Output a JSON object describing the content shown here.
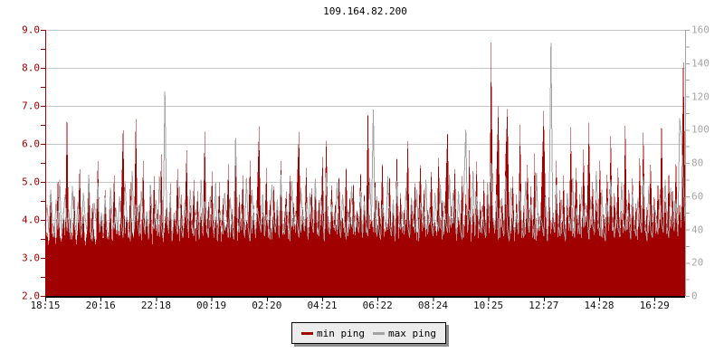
{
  "title": "109.164.82.200",
  "colors": {
    "min_ping": "#a00000",
    "max_ping": "#a3a3a3",
    "grid": "#c6c6c6",
    "left_axis": "#a00000",
    "right_axis": "#a5a5a5",
    "bottom_axis": "#000000",
    "left_labels": "#a00000",
    "right_labels": "#a5a5a5",
    "x_labels": "#111111",
    "legend_bg": "#ececec",
    "legend_border": "#000000",
    "legend_shadow": "#8c8c8c"
  },
  "legend": {
    "items": [
      {
        "label": "min ping",
        "color": "#a00000"
      },
      {
        "label": "max ping",
        "color": "#a3a3a3"
      }
    ]
  },
  "chart_data": {
    "type": "area",
    "title": "109.164.82.200",
    "grid": "horizontal gridlines at each whole unit of left axis, top border at 9.0",
    "legend_position": "bottom-center",
    "left_axis": {
      "series": "min ping",
      "min": 2.0,
      "max": 9.0,
      "tick_step": 0.5,
      "labels": [
        "9.0",
        "8.0",
        "7.0",
        "6.0",
        "5.0",
        "4.0",
        "3.0",
        "2.0"
      ]
    },
    "right_axis": {
      "series": "max ping",
      "min": 0,
      "max": 160,
      "tick_step": 10,
      "labels": [
        "160",
        "140",
        "120",
        "100",
        "80",
        "60",
        "40",
        "20",
        "0"
      ]
    },
    "x_axis": {
      "tick_labels": [
        "18:15",
        "20:16",
        "22:18",
        "00:19",
        "02:20",
        "04:21",
        "06:22",
        "08:24",
        "10:25",
        "12:27",
        "14:28",
        "16:29"
      ]
    },
    "series": [
      {
        "name": "min ping",
        "style": "area-fill-to-bottom",
        "axis": "left",
        "color": "#a00000",
        "values": [
          3.4,
          3.7,
          3.3,
          4.6,
          3.5,
          3.9,
          3.3,
          5.2,
          3.6,
          3.4,
          4.3,
          3.5,
          7.0,
          3.6,
          4.1,
          3.4,
          4.8,
          3.3,
          3.8,
          5.5,
          3.5,
          4.2,
          3.3,
          3.7,
          5.0,
          3.4,
          4.5,
          3.6,
          3.3,
          5.7,
          3.8,
          4.1,
          3.4,
          4.9,
          3.5,
          3.7,
          4.4,
          3.3,
          5.3,
          3.6,
          4.0,
          3.5,
          4.7,
          6.6,
          3.6,
          4.2,
          3.4,
          5.1,
          3.7,
          3.5,
          6.9,
          3.8,
          4.5,
          3.4,
          5.6,
          3.6,
          4.1,
          3.5,
          4.8,
          3.3,
          5.2,
          3.7,
          4.3,
          3.5,
          5.8,
          3.4,
          3.9,
          4.6,
          3.6,
          5.0,
          3.5,
          4.2,
          3.8,
          5.4,
          3.4,
          4.7,
          3.6,
          4.0,
          5.9,
          3.5,
          4.4,
          3.6,
          5.1,
          3.4,
          4.8,
          3.7,
          4.2,
          3.5,
          6.4,
          3.6,
          4.5,
          3.8,
          5.3,
          3.5,
          4.1,
          3.6,
          5.0,
          3.4,
          4.6,
          3.7,
          3.9,
          5.5,
          3.5,
          4.3,
          3.6,
          5.8,
          3.4,
          4.7,
          3.7,
          5.2,
          3.5,
          4.0,
          3.8,
          5.6,
          3.6,
          4.4,
          3.5,
          4.9,
          6.5,
          3.6,
          4.2,
          3.7,
          5.4,
          3.5,
          4.6,
          3.4,
          5.0,
          3.8,
          4.3,
          3.6,
          5.7,
          3.5,
          4.1,
          4.8,
          3.4,
          5.3,
          3.7,
          4.5,
          3.6,
          5.1,
          6.4,
          3.5,
          4.4,
          3.7,
          5.5,
          3.4,
          4.0,
          4.9,
          3.6,
          5.2,
          3.5,
          4.6,
          3.8,
          5.8,
          3.4,
          6.3,
          4.2,
          3.6,
          5.0,
          3.7,
          4.5,
          3.5,
          5.3,
          3.8,
          4.1,
          3.6,
          5.6,
          3.4,
          4.7,
          3.7,
          5.1,
          3.5,
          4.3,
          3.9,
          5.4,
          3.6,
          4.8,
          3.5,
          7.2,
          3.7,
          4.2,
          3.6,
          5.2,
          3.4,
          4.6,
          3.8,
          5.7,
          3.5,
          4.0,
          3.7,
          5.3,
          3.6,
          4.4,
          3.5,
          5.9,
          3.4,
          4.8,
          3.6,
          4.3,
          3.8,
          6.3,
          3.5,
          4.5,
          3.7,
          5.1,
          3.4,
          4.2,
          5.6,
          3.6,
          4.9,
          3.5,
          4.3,
          3.8,
          5.4,
          3.6,
          4.0,
          3.5,
          5.8,
          3.7,
          4.6,
          3.5,
          5.0,
          6.5,
          3.6,
          4.4,
          3.8,
          5.5,
          3.4,
          4.1,
          3.7,
          5.2,
          3.5,
          4.7,
          3.6,
          5.9,
          3.4,
          4.3,
          3.8,
          5.6,
          3.5,
          4.5,
          3.6,
          5.1,
          3.7,
          4.8,
          3.5,
          8.8,
          4.2,
          3.6,
          5.3,
          7.1,
          3.5,
          4.6,
          3.8,
          5.7,
          7.0,
          4.1,
          3.6,
          5.2,
          3.4,
          4.7,
          3.7,
          6.6,
          3.5,
          4.4,
          3.6,
          5.5,
          3.8,
          4.9,
          3.5,
          5.8,
          3.4,
          4.2,
          3.7,
          5.3,
          6.9,
          4.6,
          3.5,
          5.0,
          3.6,
          4.3,
          3.8,
          5.6,
          3.5,
          4.8,
          3.6,
          5.2,
          3.4,
          4.5,
          3.7,
          6.5,
          3.5,
          4.1,
          5.4,
          3.6,
          4.7,
          3.5,
          5.9,
          3.8,
          4.4,
          6.6,
          3.6,
          5.1,
          3.5,
          4.6,
          3.7,
          5.7,
          3.4,
          4.2,
          3.8,
          5.3,
          3.6,
          6.4,
          3.5,
          4.8,
          3.7,
          5.5,
          3.4,
          4.3,
          3.6,
          6.7,
          3.5,
          4.9,
          3.8,
          5.2,
          3.6,
          4.5,
          3.4,
          5.8,
          3.7,
          6.5,
          3.5,
          4.4,
          3.6,
          5.6,
          3.8,
          4.7,
          3.5,
          5.1,
          3.6,
          6.8,
          3.7,
          4.6,
          3.5,
          5.4,
          3.6,
          4.9,
          3.8,
          5.7,
          3.5,
          4.5,
          3.7,
          8.6,
          5.0
        ]
      },
      {
        "name": "max ping",
        "style": "line",
        "axis": "right",
        "color": "#a3a3a3",
        "values": [
          42,
          55,
          38,
          64,
          45,
          35,
          58,
          40,
          70,
          36,
          48,
          61,
          39,
          52,
          34,
          66,
          44,
          37,
          57,
          43,
          35,
          62,
          47,
          39,
          73,
          41,
          33,
          56,
          45,
          68,
          38,
          50,
          36,
          59,
          42,
          34,
          65,
          46,
          40,
          53,
          37,
          60,
          44,
          35,
          69,
          48,
          41,
          33,
          75,
          39,
          55,
          43,
          36,
          63,
          46,
          38,
          51,
          34,
          67,
          45,
          40,
          58,
          36,
          72,
          42,
          35,
          123,
          47,
          39,
          61,
          33,
          49,
          44,
          37,
          66,
          41,
          35,
          56,
          48,
          38,
          64,
          43,
          36,
          52,
          46,
          34,
          70,
          39,
          57,
          42,
          35,
          60,
          45,
          38,
          68,
          33,
          50,
          44,
          37,
          62,
          47,
          35,
          59,
          41,
          34,
          95,
          46,
          38,
          55,
          43,
          36,
          71,
          40,
          33,
          64,
          48,
          37,
          53,
          45,
          39,
          61,
          36,
          49,
          42,
          34,
          67,
          44,
          38,
          58,
          35,
          73,
          41,
          37,
          54,
          46,
          33,
          69,
          40,
          51,
          43,
          35,
          65,
          47,
          39,
          56,
          34,
          62,
          45,
          38,
          70,
          42,
          36,
          59,
          48,
          33,
          74,
          41,
          37,
          55,
          44,
          39,
          68,
          43,
          35,
          61,
          46,
          34,
          52,
          40,
          66,
          37,
          49,
          44,
          38,
          63,
          35,
          57,
          42,
          36,
          71,
          45,
          112,
          38,
          60,
          41,
          34,
          55,
          47,
          39,
          72,
          43,
          36,
          58,
          33,
          69,
          44,
          40,
          51,
          37,
          65,
          42,
          35,
          59,
          46,
          38,
          64,
          33,
          56,
          48,
          41,
          70,
          37,
          53,
          43,
          36,
          62,
          45,
          39,
          67,
          34,
          57,
          44,
          38,
          73,
          41,
          62,
          48,
          35,
          63,
          40,
          34,
          66,
          100,
          39,
          52,
          43,
          75,
          36,
          60,
          45,
          38,
          54,
          42,
          35,
          68,
          44,
          80,
          47,
          39,
          61,
          34,
          58,
          43,
          36,
          72,
          40,
          33,
          65,
          45,
          38,
          50,
          37,
          63,
          41,
          35,
          69,
          46,
          38,
          55,
          42,
          34,
          74,
          39,
          48,
          44,
          36,
          60,
          33,
          52,
          152,
          45,
          38,
          67,
          43,
          36,
          58,
          40,
          34,
          62,
          47,
          39,
          71,
          35,
          53,
          44,
          37,
          66,
          41,
          56,
          48,
          34,
          60,
          42,
          38,
          75,
          45,
          36,
          64,
          39,
          33,
          57,
          43,
          70,
          46,
          35,
          51,
          40,
          37,
          68,
          44,
          39,
          55,
          47,
          34,
          63,
          41,
          36,
          59,
          45,
          38,
          72,
          43,
          33,
          66,
          40,
          35,
          54,
          48,
          37,
          61,
          44,
          38,
          70,
          42,
          35,
          65,
          46,
          39,
          58,
          36,
          107,
          95,
          68,
          45
        ]
      }
    ]
  }
}
